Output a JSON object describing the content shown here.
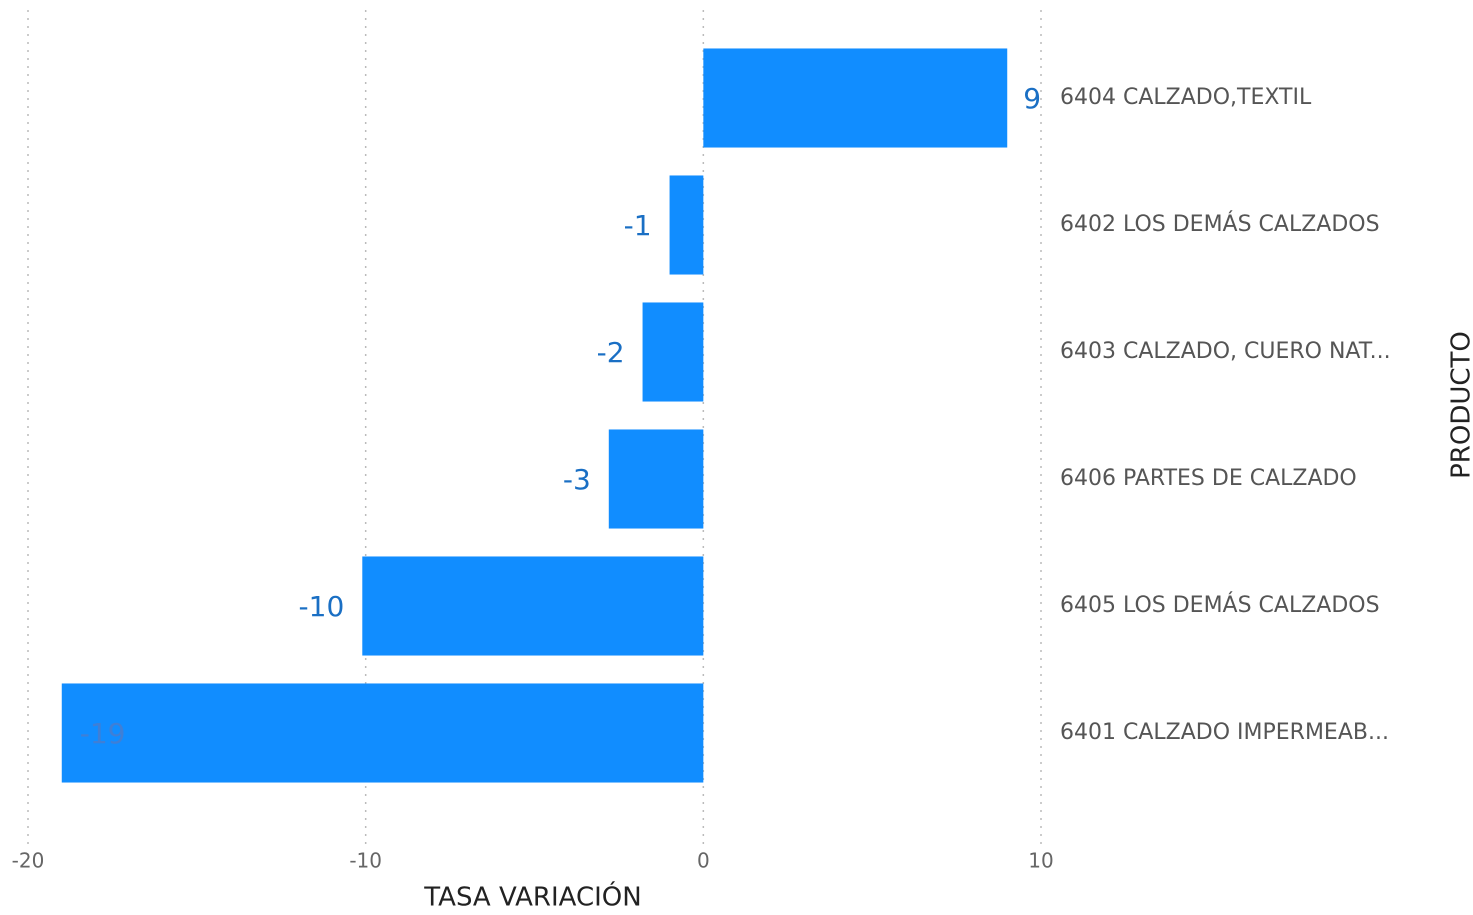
{
  "chart_data": {
    "type": "hbar",
    "categories": [
      "6404 CALZADO,TEXTIL",
      "6402 LOS DEMÁS CALZADOS",
      "6403 CALZADO, CUERO NAT...",
      "6406 PARTES DE CALZADO",
      "6405 LOS DEMÁS CALZADOS",
      "6401 CALZADO IMPERMEAB..."
    ],
    "values": [
      9,
      -1,
      -1.8,
      -2.8,
      -10.1,
      -19
    ],
    "value_labels": [
      "9",
      "-1",
      "-2",
      "-3",
      "-10",
      "-19"
    ],
    "color": "#118dff",
    "xlim": [
      -20,
      10
    ],
    "xticks": [
      -20,
      -10,
      0,
      10
    ],
    "grid": true,
    "x_label": "TASA VARIACIÓN",
    "y_label": "PRODUCTO"
  }
}
